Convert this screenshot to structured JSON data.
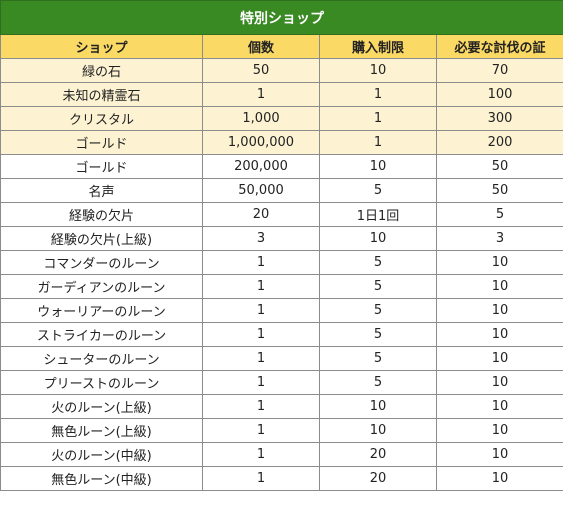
{
  "title": "特別ショップ",
  "headers": {
    "shop": "ショップ",
    "quantity": "個数",
    "purchase_limit": "購入制限",
    "required_proof": "必要な討伐の証"
  },
  "colors": {
    "title_bg": "#3a8a24",
    "header_bg": "#fad965",
    "highlight_row_bg": "#fdf3d3"
  },
  "rows": [
    {
      "item": "緑の石",
      "quantity": "50",
      "limit": "10",
      "cost": "70",
      "highlight": true
    },
    {
      "item": "未知の精霊石",
      "quantity": "1",
      "limit": "1",
      "cost": "100",
      "highlight": true
    },
    {
      "item": "クリスタル",
      "quantity": "1,000",
      "limit": "1",
      "cost": "300",
      "highlight": true
    },
    {
      "item": "ゴールド",
      "quantity": "1,000,000",
      "limit": "1",
      "cost": "200",
      "highlight": true
    },
    {
      "item": "ゴールド",
      "quantity": "200,000",
      "limit": "10",
      "cost": "50",
      "highlight": false
    },
    {
      "item": "名声",
      "quantity": "50,000",
      "limit": "5",
      "cost": "50",
      "highlight": false
    },
    {
      "item": "経験の欠片",
      "quantity": "20",
      "limit": "1日1回",
      "cost": "5",
      "highlight": false
    },
    {
      "item": "経験の欠片(上級)",
      "quantity": "3",
      "limit": "10",
      "cost": "3",
      "highlight": false
    },
    {
      "item": "コマンダーのルーン",
      "quantity": "1",
      "limit": "5",
      "cost": "10",
      "highlight": false
    },
    {
      "item": "ガーディアンのルーン",
      "quantity": "1",
      "limit": "5",
      "cost": "10",
      "highlight": false
    },
    {
      "item": "ウォーリアーのルーン",
      "quantity": "1",
      "limit": "5",
      "cost": "10",
      "highlight": false
    },
    {
      "item": "ストライカーのルーン",
      "quantity": "1",
      "limit": "5",
      "cost": "10",
      "highlight": false
    },
    {
      "item": "シューターのルーン",
      "quantity": "1",
      "limit": "5",
      "cost": "10",
      "highlight": false
    },
    {
      "item": "プリーストのルーン",
      "quantity": "1",
      "limit": "5",
      "cost": "10",
      "highlight": false
    },
    {
      "item": "火のルーン(上級)",
      "quantity": "1",
      "limit": "10",
      "cost": "10",
      "highlight": false
    },
    {
      "item": "無色ルーン(上級)",
      "quantity": "1",
      "limit": "10",
      "cost": "10",
      "highlight": false
    },
    {
      "item": "火のルーン(中級)",
      "quantity": "1",
      "limit": "20",
      "cost": "10",
      "highlight": false
    },
    {
      "item": "無色ルーン(中級)",
      "quantity": "1",
      "limit": "20",
      "cost": "10",
      "highlight": false
    }
  ]
}
